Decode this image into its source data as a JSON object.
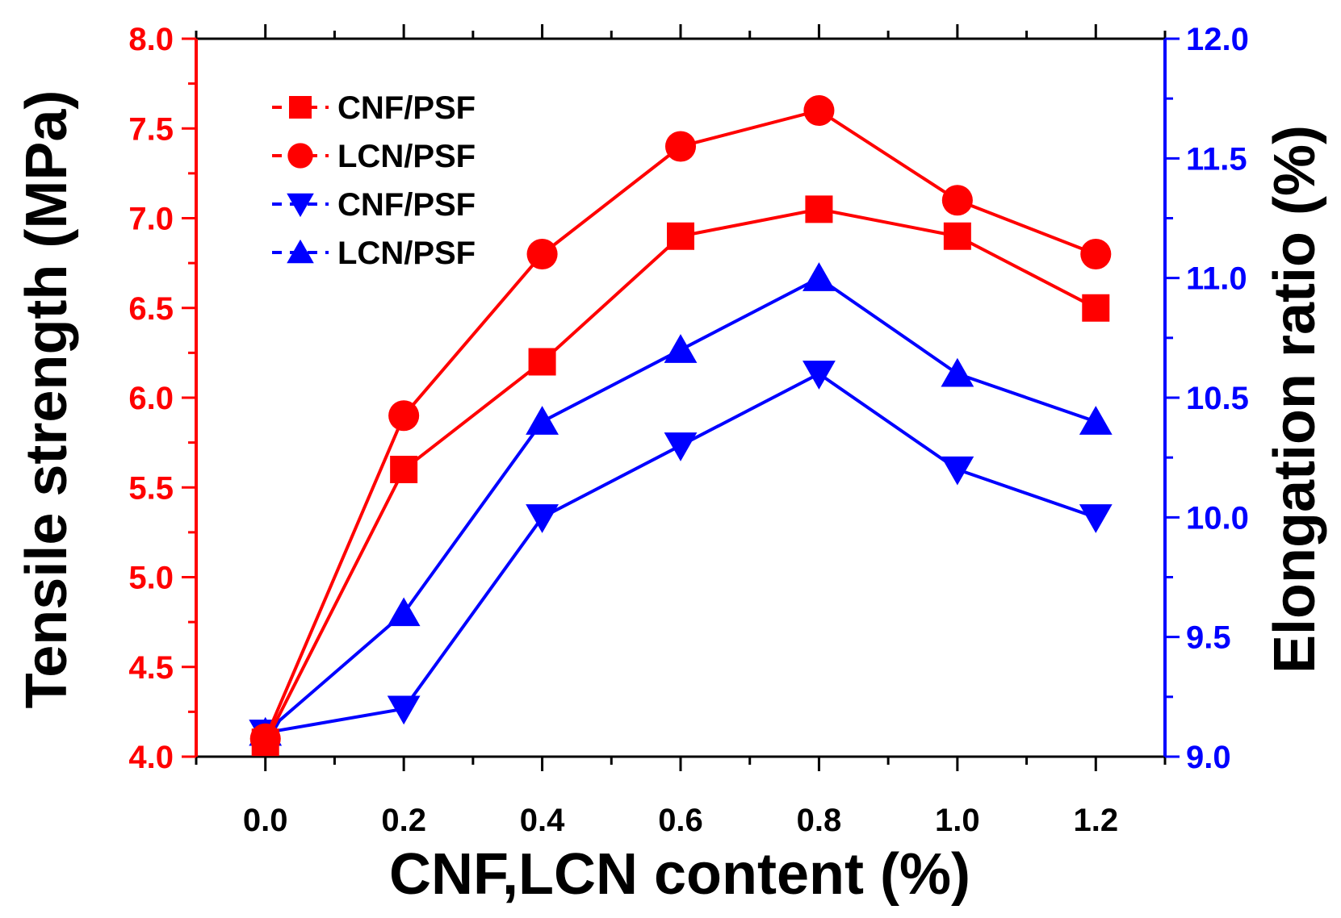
{
  "chart_data": {
    "type": "line",
    "xlabel": "CNF,LCN content (%)",
    "ylabel_left": "Tensile strength (MPa)",
    "ylabel_right": "Elongation ratio (%)",
    "x": [
      0.0,
      0.2,
      0.4,
      0.6,
      0.8,
      1.0,
      1.2
    ],
    "xticks": [
      "0.0",
      "0.2",
      "0.4",
      "0.6",
      "0.8",
      "1.0",
      "1.2"
    ],
    "xlim": [
      -0.1,
      1.3
    ],
    "ylim_left": [
      4.0,
      8.0
    ],
    "yticks_left": [
      "4.0",
      "4.5",
      "5.0",
      "5.5",
      "6.0",
      "6.5",
      "7.0",
      "7.5",
      "8.0"
    ],
    "ylim_right": [
      9.0,
      12.0
    ],
    "yticks_right": [
      "9.0",
      "9.5",
      "10.0",
      "10.5",
      "11.0",
      "11.5",
      "12.0"
    ],
    "left_axis_color": "#ff0000",
    "right_axis_color": "#0000ff",
    "legend_position": "top-left",
    "series": [
      {
        "name": "CNF/PSF",
        "axis": "left",
        "marker": "square",
        "color": "#ff0000",
        "values": [
          4.08,
          5.6,
          6.2,
          6.9,
          7.05,
          6.9,
          6.5
        ]
      },
      {
        "name": "LCN/PSF",
        "axis": "left",
        "marker": "circle",
        "color": "#ff0000",
        "values": [
          4.1,
          5.9,
          6.8,
          7.4,
          7.6,
          7.1,
          6.8
        ]
      },
      {
        "name": "CNF/PSF",
        "axis": "right",
        "marker": "triangle-down",
        "color": "#0000ff",
        "values": [
          9.1,
          9.2,
          10.0,
          10.3,
          10.6,
          10.2,
          10.0
        ]
      },
      {
        "name": "LCN/PSF",
        "axis": "right",
        "marker": "triangle-up",
        "color": "#0000ff",
        "values": [
          9.1,
          9.6,
          10.4,
          10.7,
          11.0,
          10.6,
          10.4
        ]
      }
    ]
  }
}
